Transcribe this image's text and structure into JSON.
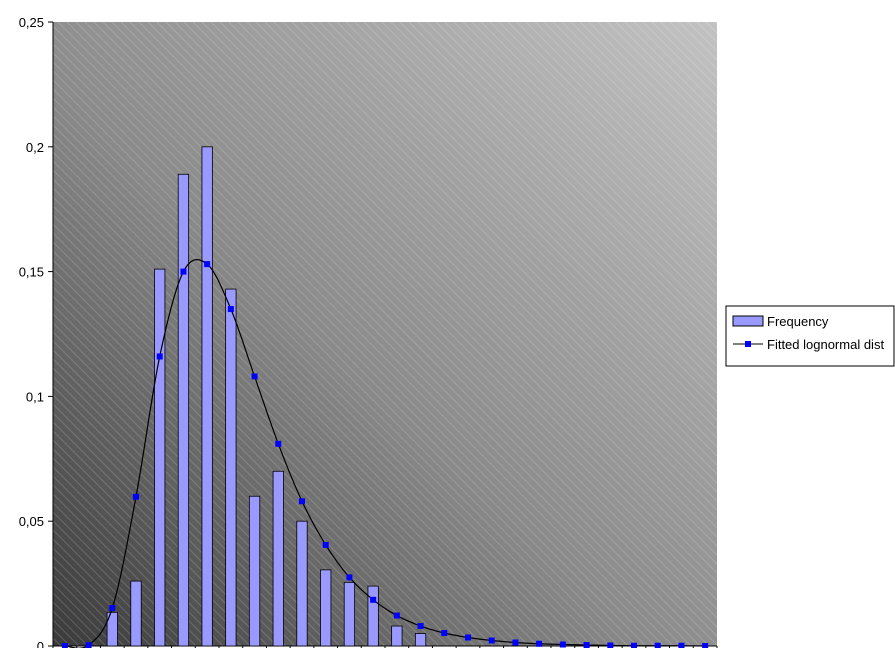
{
  "chart_data": {
    "type": "bar",
    "title": "",
    "xlabel": "",
    "ylabel": "",
    "ylim": [
      0,
      0.25
    ],
    "yticks": [
      {
        "value": 0,
        "label": "0"
      },
      {
        "value": 0.05,
        "label": "0,05"
      },
      {
        "value": 0.1,
        "label": "0,1"
      },
      {
        "value": 0.15,
        "label": "0,15"
      },
      {
        "value": 0.2,
        "label": "0,2"
      },
      {
        "value": 0.25,
        "label": "0,25"
      }
    ],
    "category_count": 28,
    "grid": false,
    "legend_position": "right",
    "series": [
      {
        "name": "Frequency",
        "kind": "bar",
        "color": "#9999FF",
        "values": [
          0,
          0,
          0.0135,
          0.026,
          0.151,
          0.189,
          0.2,
          0.143,
          0.06,
          0.07,
          0.05,
          0.0305,
          0.0255,
          0.024,
          0.008,
          0.005,
          0,
          0,
          0,
          0,
          0,
          0,
          0,
          0,
          0,
          0,
          0,
          0
        ]
      },
      {
        "name": "Fitted lognormal dist",
        "kind": "line",
        "color": "#0000FF",
        "line_color": "#000000",
        "values": [
          0,
          0.0003,
          0.0152,
          0.0598,
          0.116,
          0.15,
          0.153,
          0.135,
          0.108,
          0.081,
          0.058,
          0.0405,
          0.0275,
          0.0185,
          0.0122,
          0.008,
          0.0052,
          0.0034,
          0.0022,
          0.0014,
          0.0009,
          0.0006,
          0.0004,
          0.0002,
          0.0001,
          0.0001,
          0.0001,
          0
        ]
      }
    ]
  }
}
